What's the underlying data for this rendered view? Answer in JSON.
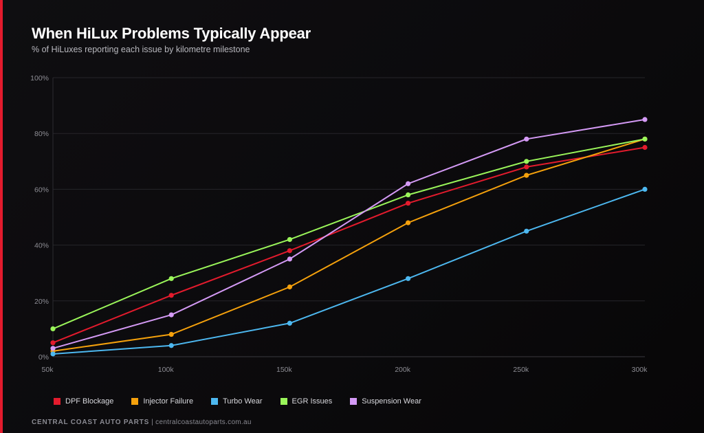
{
  "header": {
    "title": "When HiLux Problems Typically Appear",
    "subtitle": "% of HiLuxes reporting each issue by kilometre milestone"
  },
  "footer": {
    "brand": "CENTRAL COAST AUTO PARTS",
    "separator": "|",
    "url": "centralcoastautoparts.com.au"
  },
  "colors": {
    "accent": "#e31b2d",
    "grid": "#26252a",
    "axis_text": "#8e8e95"
  },
  "chart_data": {
    "type": "line",
    "title": "When HiLux Problems Typically Appear",
    "subtitle": "% of HiLuxes reporting each issue by kilometre milestone",
    "x": [
      "50k",
      "100k",
      "150k",
      "200k",
      "250k",
      "300k"
    ],
    "xlabel": "",
    "ylabel": "",
    "ylim": [
      0,
      100
    ],
    "yticks": [
      "0%",
      "20%",
      "40%",
      "60%",
      "80%",
      "100%"
    ],
    "grid": true,
    "legend": "bottom-left",
    "series": [
      {
        "name": "DPF Blockage",
        "color": "#e31b2d",
        "values": [
          5,
          22,
          38,
          55,
          68,
          75
        ]
      },
      {
        "name": "Injector Failure",
        "color": "#f5a10c",
        "values": [
          2,
          8,
          25,
          48,
          65,
          78
        ]
      },
      {
        "name": "Turbo Wear",
        "color": "#4db8f0",
        "values": [
          1,
          4,
          12,
          28,
          45,
          60
        ]
      },
      {
        "name": "EGR Issues",
        "color": "#9af55a",
        "values": [
          10,
          28,
          42,
          58,
          70,
          78
        ]
      },
      {
        "name": "Suspension Wear",
        "color": "#d49af5",
        "values": [
          3,
          15,
          35,
          62,
          78,
          85
        ]
      }
    ]
  }
}
